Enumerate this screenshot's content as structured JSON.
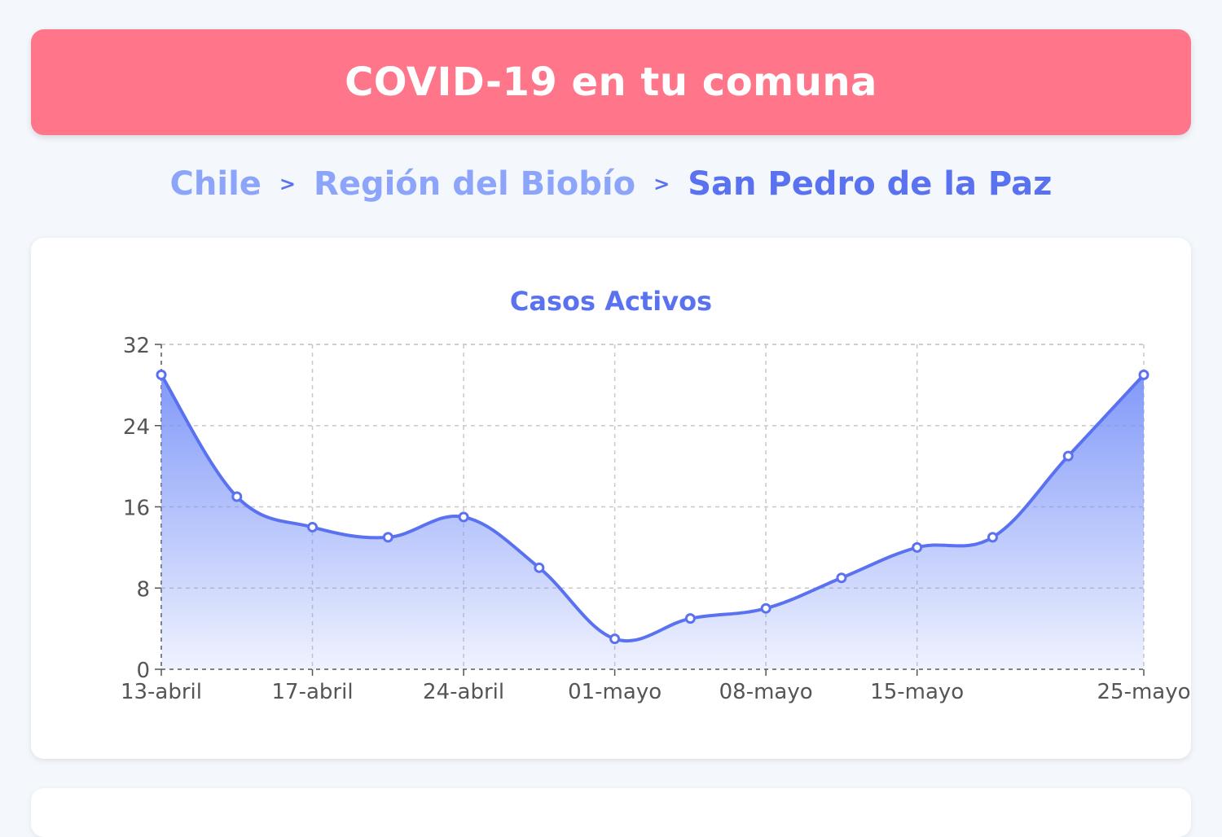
{
  "header": {
    "title": "COVID-19 en tu comuna"
  },
  "breadcrumb": {
    "items": [
      "Chile",
      "Región del Biobío",
      "San Pedro de la Paz"
    ],
    "separator": ">"
  },
  "colors": {
    "header_bg": "#ff7589",
    "accent": "#5b72f0",
    "crumb_link": "#8da4fb",
    "line": "#5b72f0",
    "fill_top": "#7b94f8"
  },
  "chart_data": {
    "type": "area",
    "title": "Casos Activos",
    "xlabel": "",
    "ylabel": "",
    "x_ticks": [
      "13-abril",
      "17-abril",
      "24-abril",
      "01-mayo",
      "08-mayo",
      "15-mayo",
      "25-mayo"
    ],
    "x": [
      0,
      1,
      2,
      3,
      4,
      5,
      6,
      7,
      8,
      9,
      10,
      11,
      12,
      13
    ],
    "values": [
      29,
      17,
      14,
      13,
      15,
      10,
      3,
      5,
      6,
      9,
      12,
      13,
      21,
      29
    ],
    "ylim": [
      0,
      32
    ],
    "y_ticks": [
      0,
      8,
      16,
      24,
      32
    ],
    "grid": true,
    "smooth": true
  }
}
